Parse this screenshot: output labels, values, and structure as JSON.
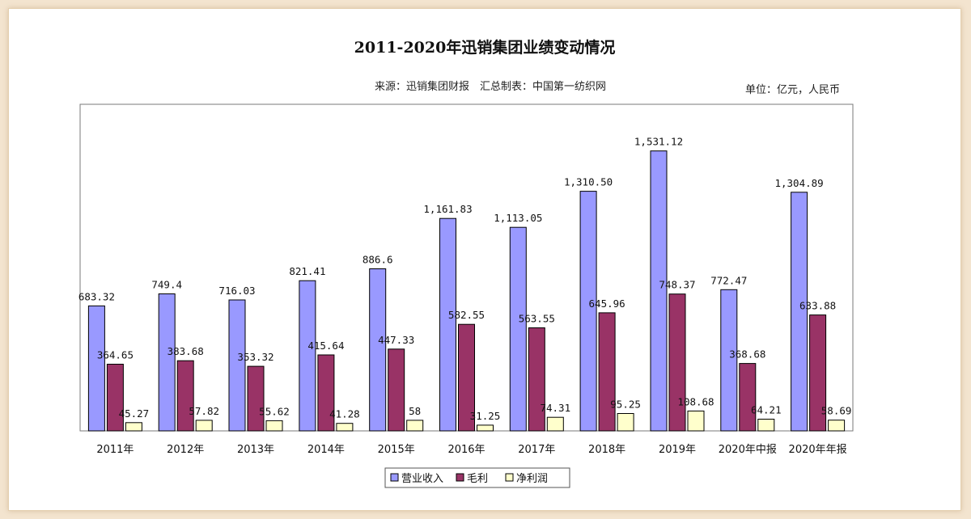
{
  "chart_data": {
    "type": "bar",
    "title": "2011-2020年迅销集团业绩变动情况",
    "source": "来源：迅销集团财报　汇总制表：中国第一纺织网",
    "unit": "单位：亿元，人民币",
    "categories": [
      "2011年",
      "2012年",
      "2013年",
      "2014年",
      "2015年",
      "2016年",
      "2017年",
      "2018年",
      "2019年",
      "2020年中报",
      "2020年年报"
    ],
    "series": [
      {
        "name": "营业收入",
        "color": "#9999ff",
        "values": [
          683.32,
          749.4,
          716.03,
          821.41,
          886.6,
          1161.83,
          1113.05,
          1310.5,
          1531.12,
          772.47,
          1304.89
        ],
        "labels": [
          "683.32",
          "749.4",
          "716.03",
          "821.41",
          "886.6",
          "1,161.83",
          "1,113.05",
          "1,310.50",
          "1,531.12",
          "772.47",
          "1,304.89"
        ]
      },
      {
        "name": "毛利",
        "color": "#993366",
        "values": [
          364.65,
          383.68,
          353.32,
          415.64,
          447.33,
          582.55,
          563.55,
          645.96,
          748.37,
          368.68,
          633.88
        ],
        "labels": [
          "364.65",
          "383.68",
          "353.32",
          "415.64",
          "447.33",
          "582.55",
          "563.55",
          "645.96",
          "748.37",
          "368.68",
          "633.88"
        ]
      },
      {
        "name": "净利润",
        "color": "#ffffcc",
        "values": [
          45.27,
          57.82,
          55.62,
          41.28,
          58,
          31.25,
          74.31,
          95.25,
          108.68,
          64.21,
          58.69
        ],
        "labels": [
          "45.27",
          "57.82",
          "55.62",
          "41.28",
          "58",
          "31.25",
          "74.31",
          "95.25",
          "108.68",
          "64.21",
          "58.69"
        ]
      }
    ],
    "ylim": [
      0,
      1600
    ],
    "grid": false,
    "legend": "bottom-center"
  }
}
